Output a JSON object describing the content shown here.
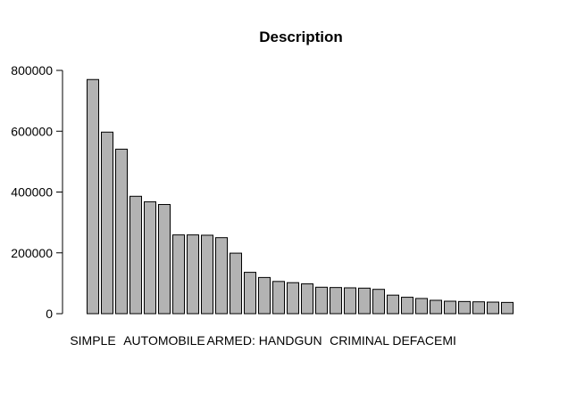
{
  "chart_data": {
    "type": "bar",
    "title": "Description",
    "xlabel": "",
    "ylabel": "",
    "ylim": [
      0,
      800000
    ],
    "yticks": [
      0,
      200000,
      400000,
      600000,
      800000
    ],
    "ytick_labels": [
      "0",
      "200000",
      "400000",
      "600000",
      "800000"
    ],
    "grid": false,
    "bar_color": "#b3b3b3",
    "edge_color": "#000000",
    "values": [
      770000,
      597000,
      541000,
      386000,
      368000,
      359000,
      259000,
      259000,
      258000,
      250000,
      199000,
      136000,
      119000,
      106000,
      102000,
      98000,
      87000,
      86000,
      85000,
      84000,
      80000,
      61000,
      54000,
      50000,
      44000,
      41000,
      40000,
      39000,
      38000,
      37000
    ],
    "category_labels": [
      {
        "bar_index": 0,
        "text": "SIMPLE"
      },
      {
        "bar_index": 5,
        "text": "AUTOMOBILE"
      },
      {
        "bar_index": 12,
        "text": "ARMED: HANDGUN"
      },
      {
        "bar_index": 21,
        "text": "CRIMINAL DEFACEMI"
      }
    ]
  }
}
